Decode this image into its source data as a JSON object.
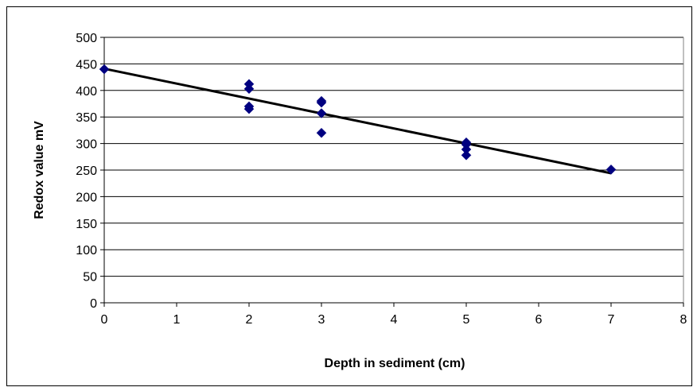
{
  "chart_data": {
    "type": "scatter",
    "title": "",
    "xlabel": "Depth in sediment (cm)",
    "ylabel": "Redox value mV",
    "xlim": [
      0,
      8
    ],
    "ylim": [
      0,
      500
    ],
    "x_ticks": [
      "0",
      "1",
      "2",
      "3",
      "4",
      "5",
      "6",
      "7",
      "8"
    ],
    "y_ticks": [
      "0",
      "50",
      "100",
      "150",
      "200",
      "250",
      "300",
      "350",
      "400",
      "450",
      "500"
    ],
    "grid": "horizontal",
    "legend": "none",
    "marker_color": "#000080",
    "series": [
      {
        "x": [
          0,
          2,
          2,
          2,
          2,
          3,
          3,
          3,
          3,
          5,
          5,
          5,
          5,
          7
        ],
        "y": [
          440,
          412,
          403,
          370,
          365,
          380,
          377,
          357,
          320,
          302,
          298,
          289,
          278,
          251
        ]
      }
    ],
    "trendline": {
      "x": [
        0,
        7
      ],
      "y": [
        441,
        244
      ],
      "color": "#000000"
    }
  }
}
